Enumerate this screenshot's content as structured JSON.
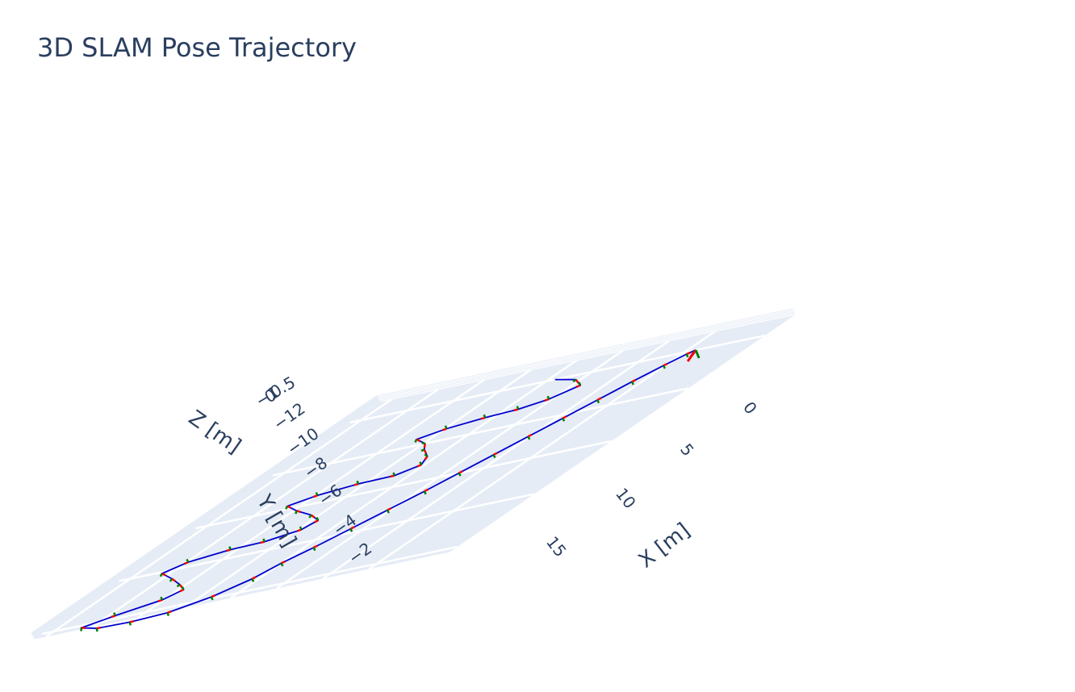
{
  "chart_data": {
    "type": "line",
    "title": "3D SLAM Pose Trajectory",
    "xlabel": "X [m]",
    "ylabel": "Y [m]",
    "zlabel": "Z [m]",
    "x_ticks": [
      "0",
      "5",
      "10",
      "15"
    ],
    "y_ticks": [
      "−2",
      "−4",
      "−6",
      "−8",
      "−10",
      "−12"
    ],
    "z_ticks": [
      "0",
      "0.5",
      "−1"
    ],
    "grid": true,
    "background": "#e5ecf6",
    "grid_color": "#ffffff",
    "series": [
      {
        "line_color": "#0000cc",
        "marker_colors": [
          "#ff0000",
          "#008000",
          "#0000ff"
        ],
        "x": [
          0,
          0.6,
          1.5,
          2.5,
          3.0,
          3.2,
          3.6,
          4.2,
          5.0,
          5.8,
          6.8,
          7.8,
          8.5,
          8.6,
          9.0,
          9.6,
          10.5,
          11.5,
          12.4,
          13.2,
          13.8,
          13.9,
          14.4,
          15.2,
          16.2,
          17.2,
          18.0,
          18.8,
          19.6,
          20.3,
          20.8,
          20.9,
          20.7,
          19.8,
          18.5,
          17.2,
          16.0,
          14.5,
          13.0,
          11.5,
          10.0,
          8.5,
          7.0,
          5.5,
          4.0,
          2.5,
          1.2,
          0.3,
          0
        ],
        "y": [
          -7.6,
          -6.3,
          -5.5,
          -6.2,
          -7.2,
          -8.5,
          -9.9,
          -10.8,
          -9.9,
          -9.4,
          -8.6,
          -8.2,
          -8.9,
          -10.4,
          -11.9,
          -12.8,
          -11.8,
          -10.5,
          -9.6,
          -9.8,
          -11.0,
          -12.4,
          -13.9,
          -14.5,
          -13.4,
          -12.4,
          -11.7,
          -12.1,
          -13.6,
          -14.6,
          -13.6,
          -12.1,
          -10.6,
          -9.3,
          -8.4,
          -8.0,
          -7.4,
          -6.8,
          -6.2,
          -5.6,
          -5.1,
          -4.6,
          -4.1,
          -3.6,
          -3.1,
          -2.6,
          -2.1,
          -1.7,
          -1.5
        ],
        "z": [
          0,
          0,
          0,
          0,
          0,
          0,
          0,
          0,
          0,
          0,
          0,
          0,
          0,
          0,
          0,
          0,
          0,
          0,
          0,
          0,
          0,
          0,
          0,
          0,
          0,
          0,
          0,
          0,
          0,
          0,
          0,
          0,
          0,
          0,
          0,
          0,
          0,
          0,
          0,
          0,
          0,
          0,
          0,
          0,
          0,
          0,
          0,
          0,
          0
        ]
      }
    ]
  }
}
